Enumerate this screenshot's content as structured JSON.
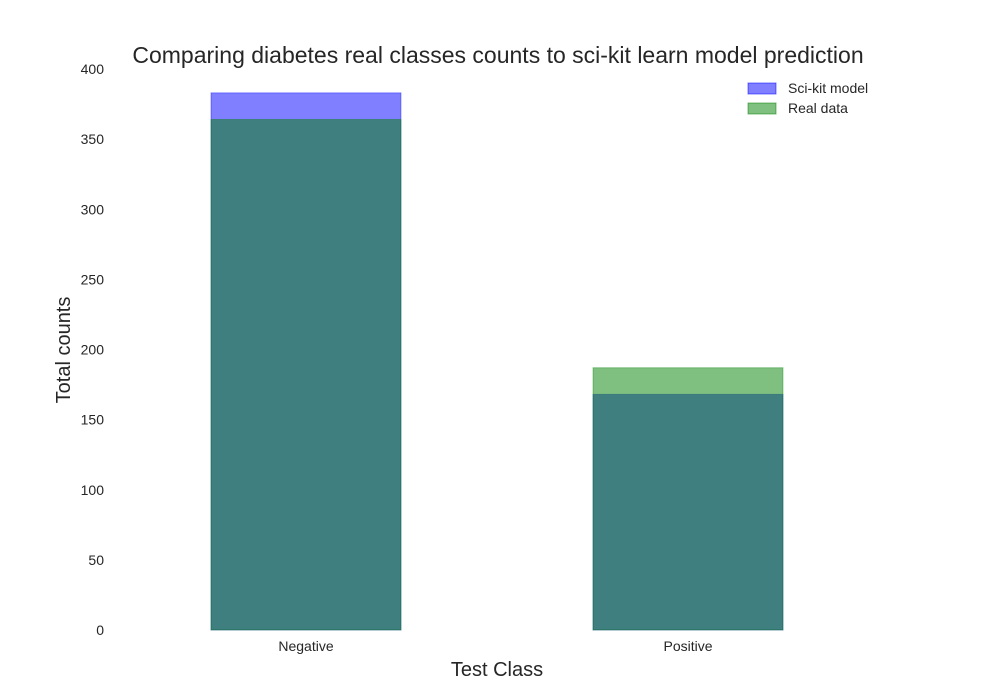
{
  "chart_data": {
    "type": "bar",
    "title": "Comparing diabetes real classes counts to sci-kit learn model prediction",
    "xlabel": "Test Class",
    "ylabel": "Total counts",
    "categories": [
      "Negative",
      "Positive"
    ],
    "series": [
      {
        "name": "Sci-kit model",
        "values": [
          383,
          168
        ],
        "color": "#0000ff",
        "opacity": 0.5
      },
      {
        "name": "Real data",
        "values": [
          364,
          187
        ],
        "color": "#008000",
        "opacity": 0.5
      }
    ],
    "overlay": true,
    "ylim": [
      0,
      400
    ],
    "yticks": [
      0,
      50,
      100,
      150,
      200,
      250,
      300,
      350,
      400
    ],
    "grid": false,
    "legend_position": "top-right"
  }
}
